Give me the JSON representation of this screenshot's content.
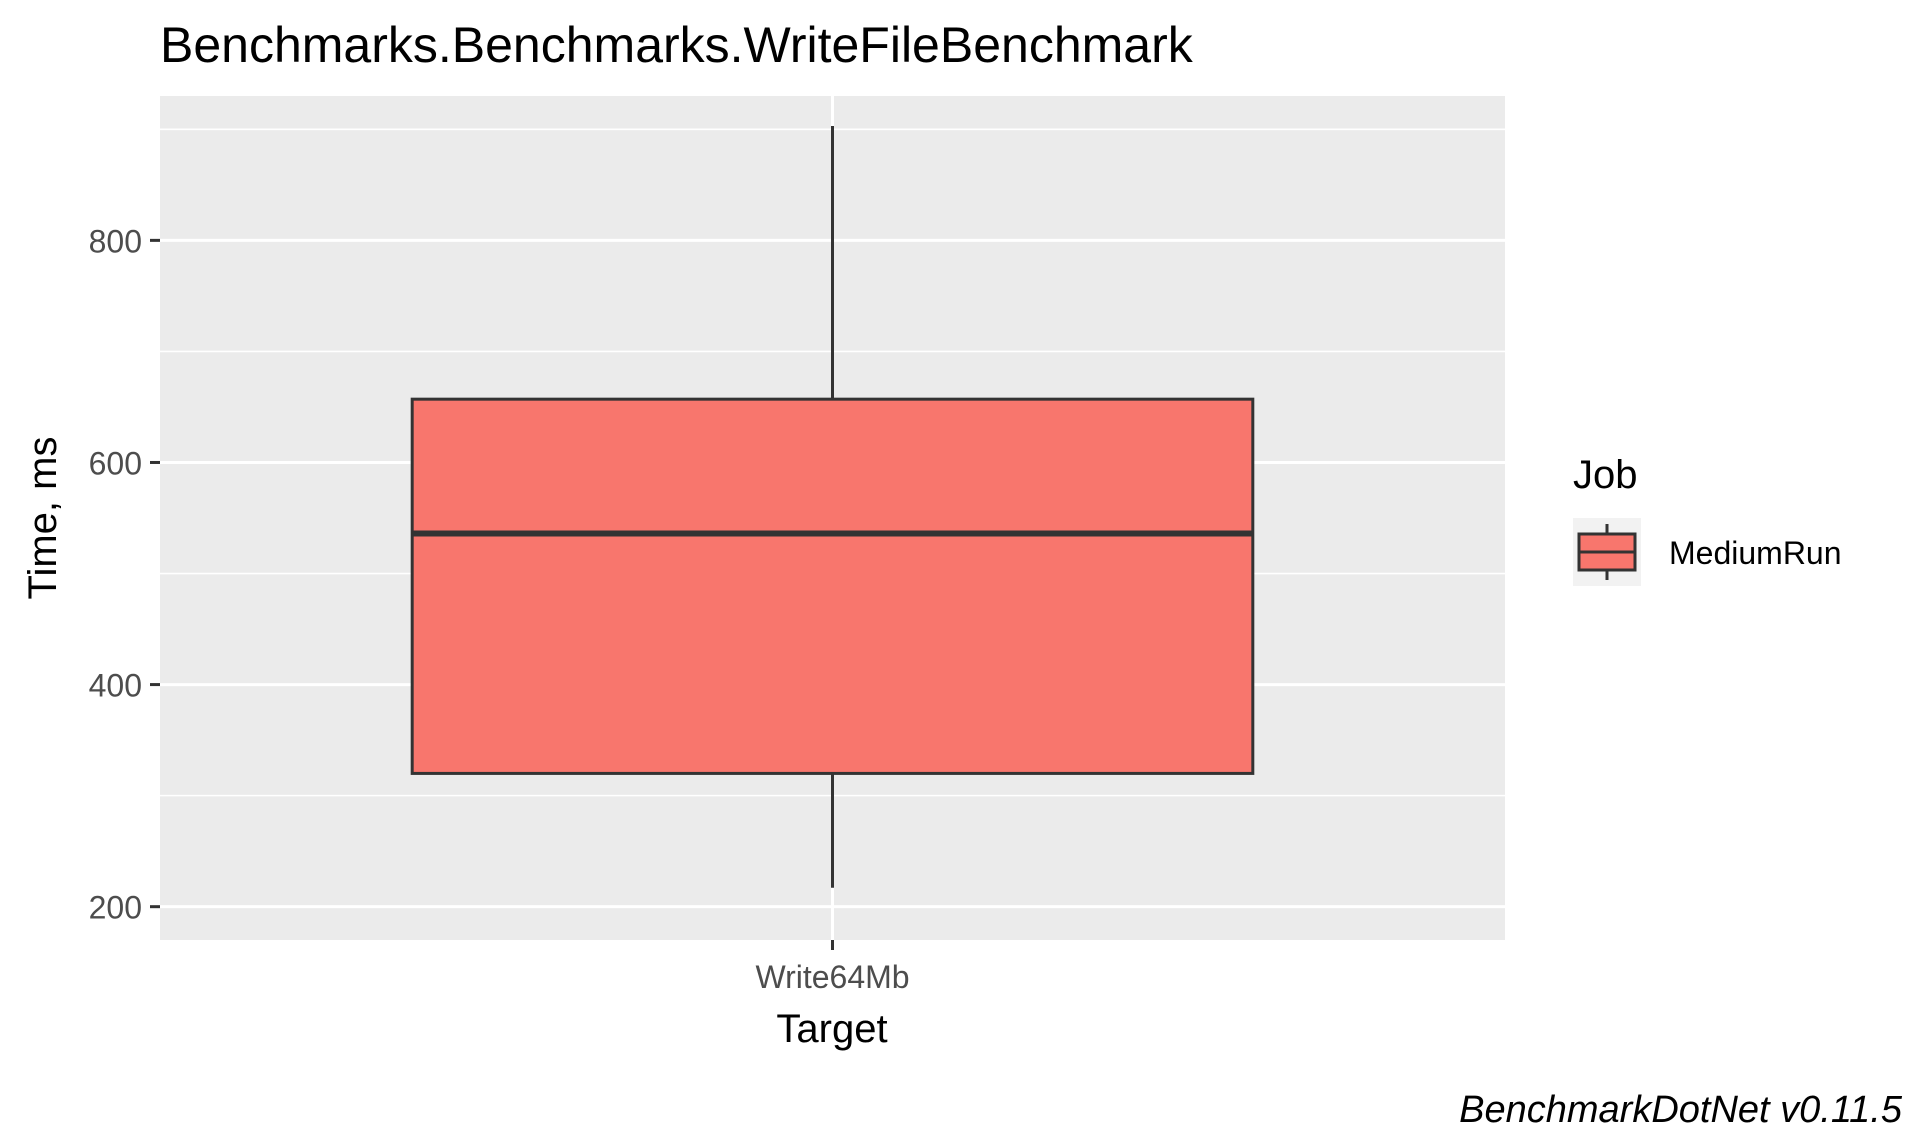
{
  "chart_data": {
    "type": "box",
    "title": "Benchmarks.Benchmarks.WriteFileBenchmark",
    "xlabel": "Target",
    "ylabel": "Time, ms",
    "categories": [
      "Write64Mb"
    ],
    "ylim": [
      170,
      930
    ],
    "yticks": [
      200,
      400,
      600,
      800
    ],
    "grid": true,
    "legend": {
      "title": "Job",
      "position": "right",
      "entries": [
        "MediumRun"
      ]
    },
    "series": [
      {
        "name": "MediumRun",
        "boxes": [
          {
            "category": "Write64Mb",
            "min": 217,
            "q1": 320,
            "median": 536,
            "q3": 657,
            "max": 903
          }
        ]
      }
    ],
    "colors": {
      "box_fill": "#F8766D",
      "box_line": "#333333",
      "panel": "#EBEBEB",
      "grid": "#FFFFFF"
    },
    "caption": "BenchmarkDotNet v0.11.5"
  }
}
